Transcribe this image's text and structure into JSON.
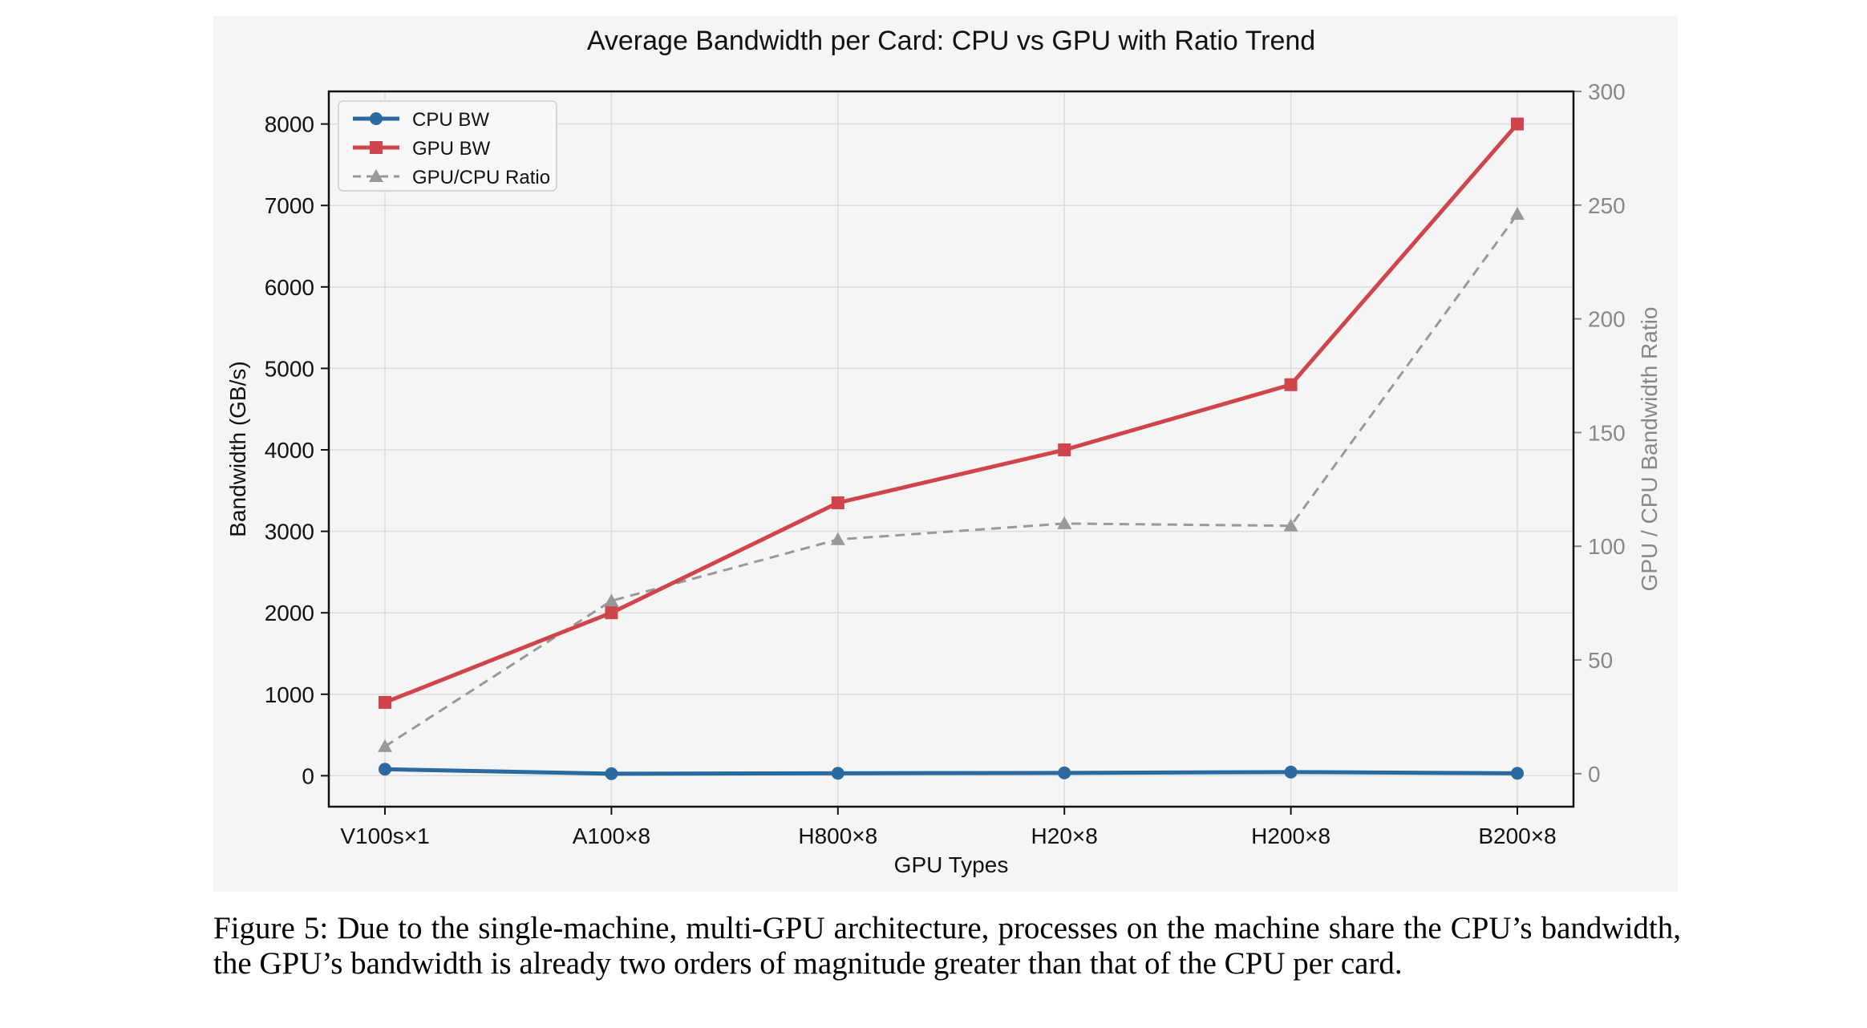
{
  "chart_data": {
    "type": "line",
    "title": "Average Bandwidth per Card: CPU vs GPU with Ratio Trend",
    "xlabel": "GPU Types",
    "ylabel": "Bandwidth (GB/s)",
    "y2label": "GPU / CPU Bandwidth Ratio",
    "categories": [
      "V100s×1",
      "A100×8",
      "H800×8",
      "H20×8",
      "H200×8",
      "B200×8"
    ],
    "ylim": [
      -380,
      8400
    ],
    "y2lim": [
      -14.5,
      300
    ],
    "yticks": [
      0,
      1000,
      2000,
      3000,
      4000,
      5000,
      6000,
      7000,
      8000
    ],
    "y2ticks": [
      0,
      50,
      100,
      150,
      200,
      250,
      300
    ],
    "grid": true,
    "legend_position": "top-left",
    "series": [
      {
        "name": "CPU BW",
        "axis": "left",
        "color": "#2a6aa0",
        "marker": "circle",
        "style": "solid",
        "values": [
          80,
          25,
          30,
          35,
          45,
          30
        ]
      },
      {
        "name": "GPU BW",
        "axis": "left",
        "color": "#d0454c",
        "marker": "square",
        "style": "solid",
        "values": [
          900,
          2000,
          3350,
          4000,
          4800,
          8000
        ]
      },
      {
        "name": "GPU/CPU Ratio",
        "axis": "right",
        "color": "#999999",
        "marker": "triangle",
        "style": "dashed",
        "values": [
          12,
          76,
          103,
          110,
          109,
          246
        ]
      }
    ]
  },
  "caption": {
    "label": "Figure 5:",
    "text": "Due to the single-machine, multi-GPU architecture, processes on the machine share the CPU’s bandwidth, the GPU’s bandwidth is already two orders of magnitude greater than that of the CPU per card."
  }
}
